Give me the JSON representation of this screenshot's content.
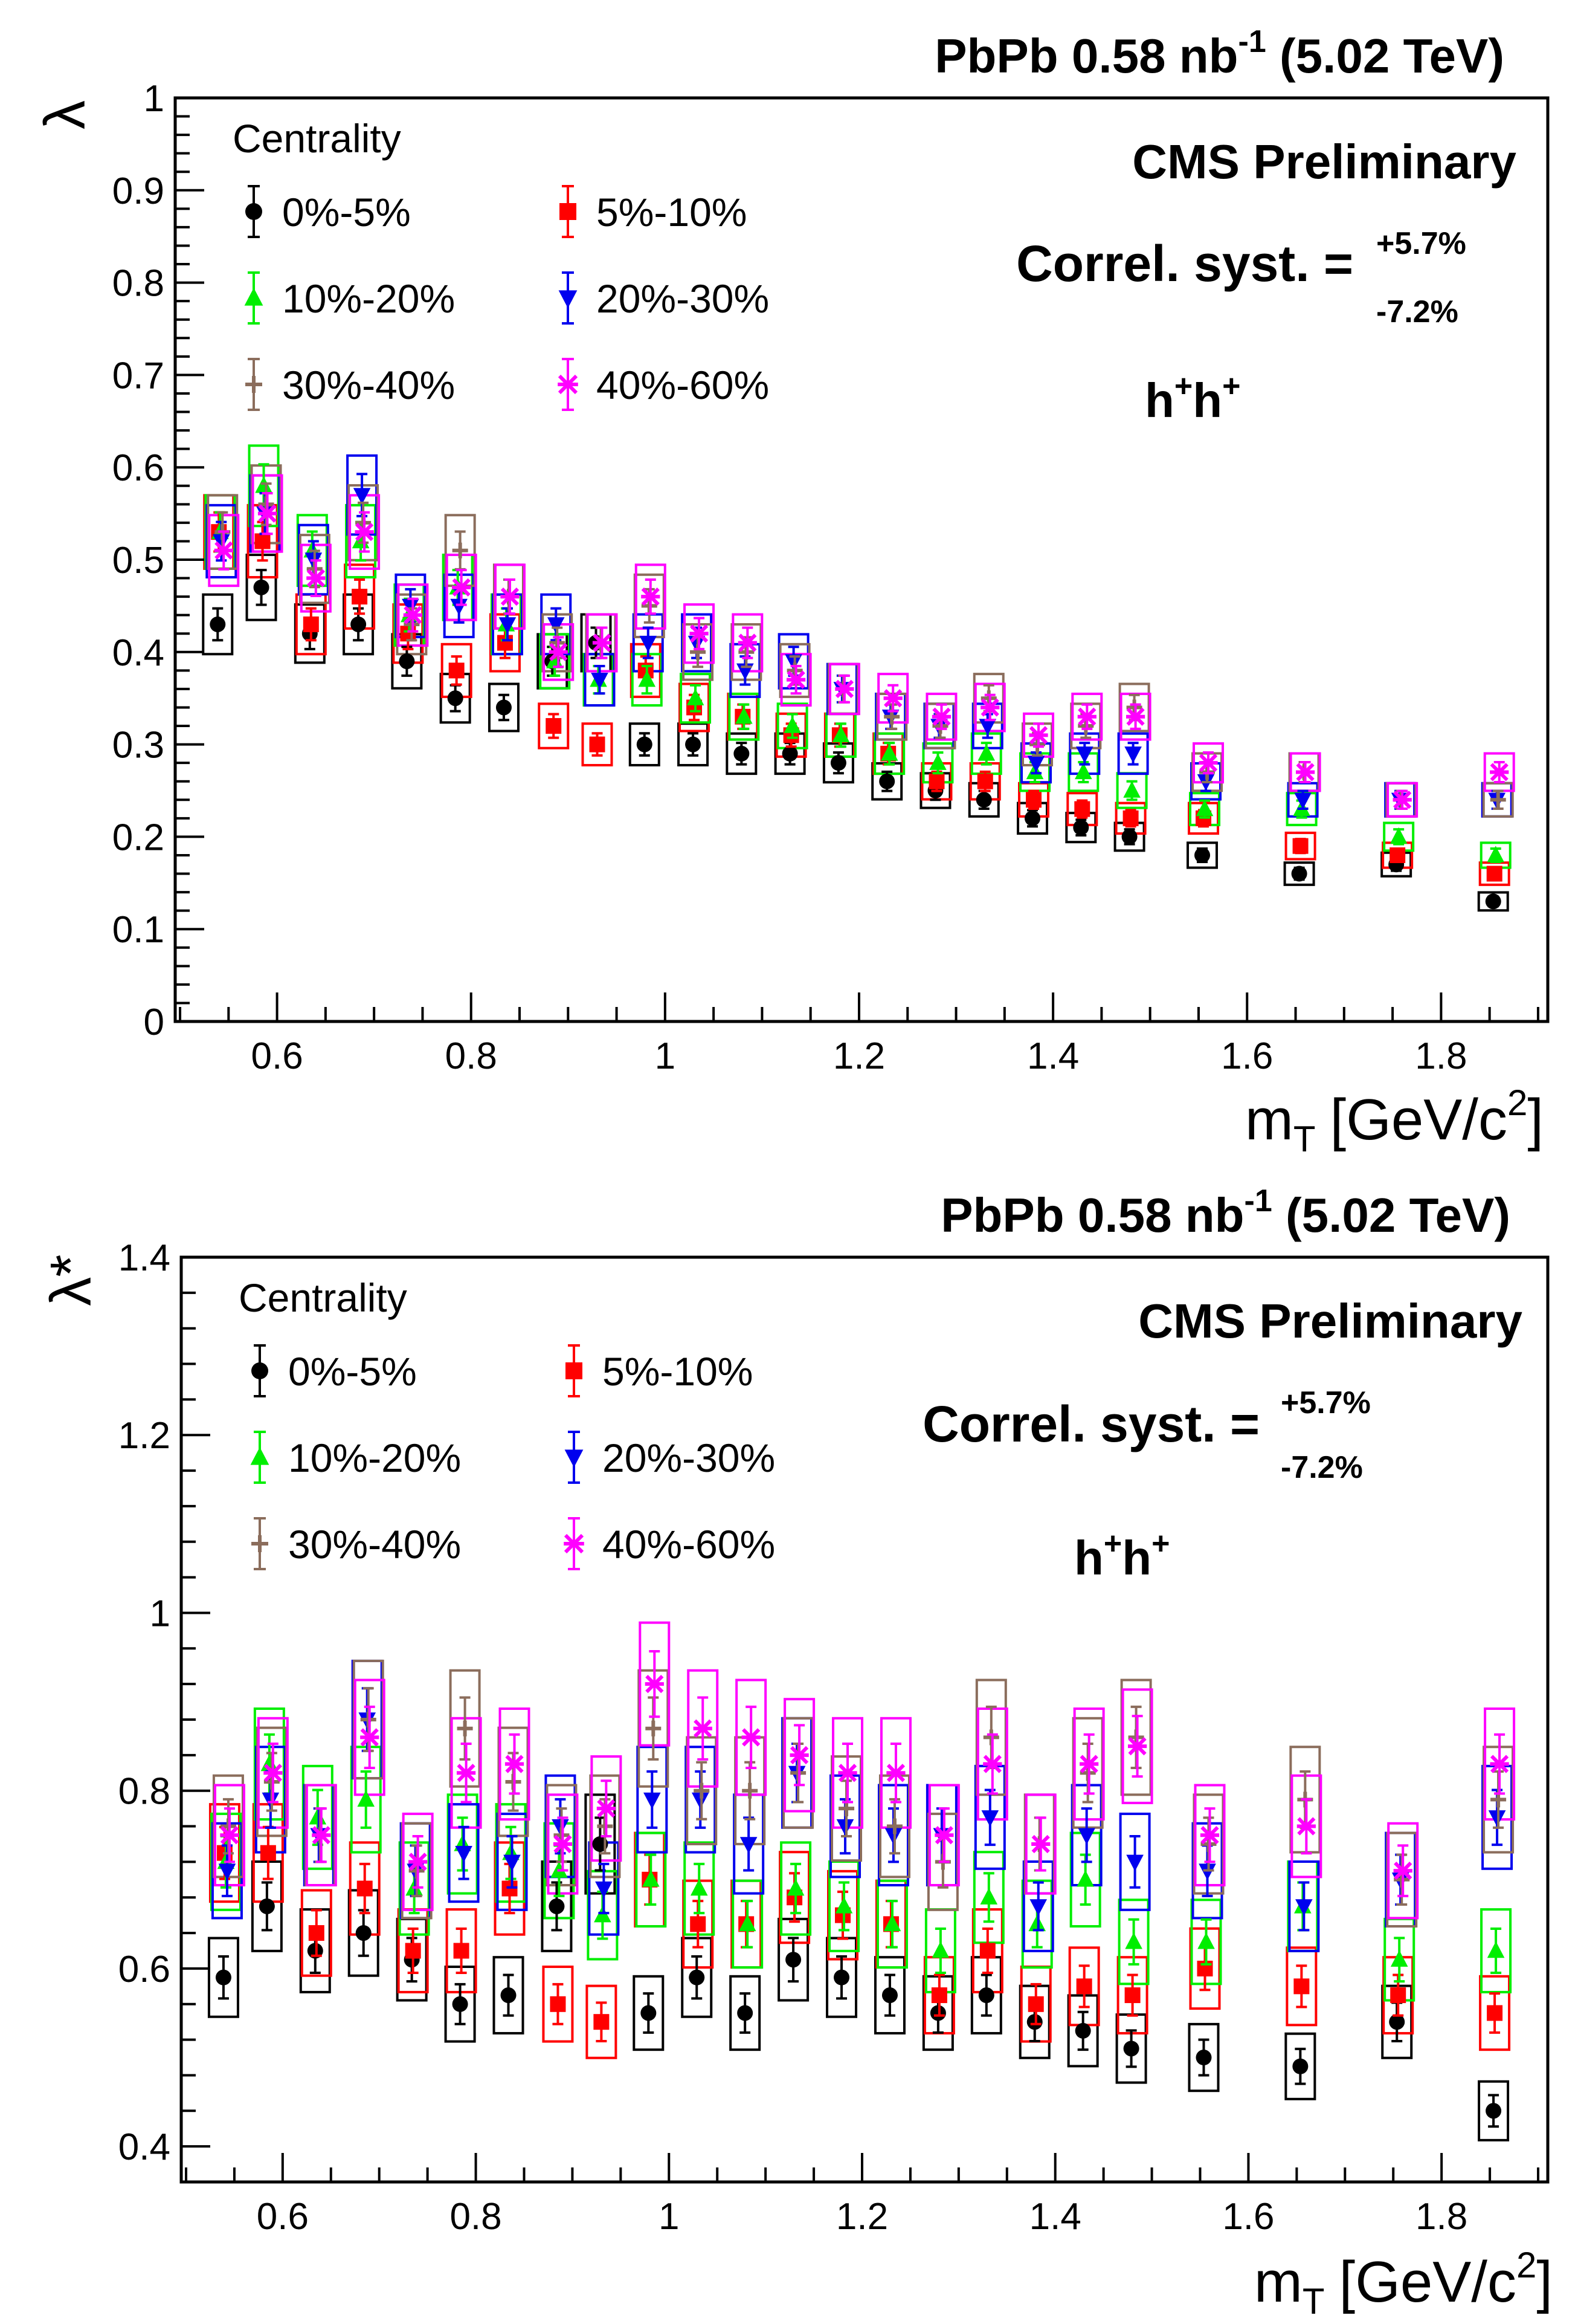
{
  "chart_data": [
    {
      "type": "scatter",
      "title": "PbPb 0.58 nb⁻¹ (5.02 TeV)",
      "title_parts": {
        "pre": "PbPb 0.58 nb",
        "sup": "-1",
        "post": " (5.02 TeV)"
      },
      "annotation": "CMS Preliminary",
      "syst_label": "Correl. syst. =",
      "syst_up": "+5.7%",
      "syst_down": "-7.2%",
      "pair_label": {
        "base": "h",
        "sup": "+"
      },
      "ylabel": "λ",
      "xlabel": "m_T [GeV/c²]",
      "xlabel_parts": {
        "m": "m",
        "sub": "T",
        "unit_pre": "[GeV/c",
        "unit_sup": "2",
        "unit_post": "]"
      },
      "legend_title": "Centrality",
      "xlim": [
        0.495,
        1.91
      ],
      "ylim": [
        0,
        1
      ],
      "xticks": [
        0.6,
        0.8,
        1,
        1.2,
        1.4,
        1.6,
        1.8
      ],
      "yticks": [
        0,
        0.1,
        0.2,
        0.3,
        0.4,
        0.5,
        0.6,
        0.7,
        0.8,
        0.9,
        1
      ],
      "x": [
        0.545,
        0.59,
        0.64,
        0.69,
        0.74,
        0.79,
        0.84,
        0.89,
        0.935,
        0.985,
        1.035,
        1.085,
        1.135,
        1.185,
        1.235,
        1.285,
        1.335,
        1.385,
        1.435,
        1.485,
        1.56,
        1.66,
        1.76,
        1.86
      ],
      "series": [
        {
          "name": "0%-5%",
          "color": "#000000",
          "marker": "circle",
          "values": [
            0.43,
            0.47,
            0.42,
            0.43,
            0.39,
            0.35,
            0.34,
            0.39,
            0.41,
            0.3,
            0.3,
            0.29,
            0.29,
            0.28,
            0.26,
            0.25,
            0.24,
            0.22,
            0.21,
            0.2,
            0.18,
            0.16,
            0.17,
            0.13
          ]
        },
        {
          "name": "5%-10%",
          "color": "#ff0000",
          "marker": "square",
          "values": [
            0.53,
            0.52,
            0.43,
            0.46,
            0.42,
            0.38,
            0.41,
            0.32,
            0.3,
            0.38,
            0.34,
            0.33,
            0.31,
            0.31,
            0.29,
            0.26,
            0.26,
            0.24,
            0.23,
            0.22,
            0.22,
            0.19,
            0.18,
            0.16
          ]
        },
        {
          "name": "10%-20%",
          "color": "#00ee00",
          "marker": "triangle-up",
          "values": [
            0.53,
            0.58,
            0.51,
            0.52,
            0.44,
            0.47,
            0.43,
            0.39,
            0.37,
            0.37,
            0.35,
            0.33,
            0.32,
            0.31,
            0.29,
            0.28,
            0.29,
            0.27,
            0.27,
            0.25,
            0.23,
            0.23,
            0.2,
            0.18
          ]
        },
        {
          "name": "20%-30%",
          "color": "#0000ee",
          "marker": "triangle-down",
          "values": [
            0.52,
            0.55,
            0.5,
            0.57,
            0.45,
            0.45,
            0.43,
            0.43,
            0.37,
            0.41,
            0.41,
            0.38,
            0.39,
            0.36,
            0.33,
            0.32,
            0.32,
            0.28,
            0.29,
            0.29,
            0.26,
            0.24,
            0.24,
            0.24
          ]
        },
        {
          "name": "30%-40%",
          "color": "#8b6d5c",
          "marker": "cross",
          "values": [
            0.53,
            0.56,
            0.49,
            0.54,
            0.43,
            0.51,
            0.46,
            0.41,
            0.41,
            0.45,
            0.4,
            0.4,
            0.38,
            0.36,
            0.33,
            0.32,
            0.35,
            0.3,
            0.32,
            0.34,
            0.27,
            0.27,
            0.24,
            0.24
          ]
        },
        {
          "name": "40%-60%",
          "color": "#ff00ff",
          "marker": "star",
          "values": [
            0.51,
            0.55,
            0.48,
            0.53,
            0.44,
            0.47,
            0.46,
            0.4,
            0.41,
            0.46,
            0.42,
            0.41,
            0.37,
            0.36,
            0.35,
            0.33,
            0.34,
            0.31,
            0.33,
            0.33,
            0.28,
            0.27,
            0.24,
            0.27
          ]
        }
      ]
    },
    {
      "type": "scatter",
      "title": "PbPb 0.58 nb⁻¹ (5.02 TeV)",
      "title_parts": {
        "pre": "PbPb 0.58 nb",
        "sup": "-1",
        "post": " (5.02 TeV)"
      },
      "annotation": "CMS Preliminary",
      "syst_label": "Correl. syst. =",
      "syst_up": "+5.7%",
      "syst_down": "-7.2%",
      "pair_label": {
        "base": "h",
        "sup": "+"
      },
      "ylabel": "λ*",
      "xlabel": "m_T [GeV/c²]",
      "xlabel_parts": {
        "m": "m",
        "sub": "T",
        "unit_pre": "[GeV/c",
        "unit_sup": "2",
        "unit_post": "]"
      },
      "legend_title": "Centrality",
      "xlim": [
        0.495,
        1.91
      ],
      "ylim": [
        0.36,
        1.4
      ],
      "xticks": [
        0.6,
        0.8,
        1,
        1.2,
        1.4,
        1.6,
        1.8
      ],
      "yticks": [
        0.4,
        0.6,
        0.8,
        1,
        1.2,
        1.4
      ],
      "x": [
        0.545,
        0.59,
        0.64,
        0.69,
        0.74,
        0.79,
        0.84,
        0.89,
        0.935,
        0.985,
        1.035,
        1.085,
        1.135,
        1.185,
        1.235,
        1.285,
        1.335,
        1.385,
        1.435,
        1.485,
        1.56,
        1.66,
        1.76,
        1.86
      ],
      "series": [
        {
          "name": "0%-5%",
          "color": "#000000",
          "marker": "circle",
          "values": [
            0.59,
            0.67,
            0.62,
            0.64,
            0.61,
            0.56,
            0.57,
            0.67,
            0.74,
            0.55,
            0.59,
            0.55,
            0.61,
            0.59,
            0.57,
            0.55,
            0.57,
            0.54,
            0.53,
            0.51,
            0.5,
            0.49,
            0.54,
            0.44
          ]
        },
        {
          "name": "5%-10%",
          "color": "#ff0000",
          "marker": "square",
          "values": [
            0.73,
            0.73,
            0.64,
            0.69,
            0.62,
            0.62,
            0.69,
            0.56,
            0.54,
            0.7,
            0.65,
            0.65,
            0.68,
            0.66,
            0.65,
            0.57,
            0.62,
            0.56,
            0.58,
            0.57,
            0.6,
            0.58,
            0.57,
            0.55
          ]
        },
        {
          "name": "10%-20%",
          "color": "#00ee00",
          "marker": "triangle-up",
          "values": [
            0.72,
            0.83,
            0.77,
            0.79,
            0.69,
            0.74,
            0.73,
            0.71,
            0.66,
            0.7,
            0.69,
            0.65,
            0.69,
            0.67,
            0.65,
            0.62,
            0.68,
            0.65,
            0.7,
            0.63,
            0.63,
            0.67,
            0.61,
            0.62
          ]
        },
        {
          "name": "20%-30%",
          "color": "#0000ee",
          "marker": "triangle-down",
          "values": [
            0.71,
            0.79,
            0.75,
            0.88,
            0.71,
            0.73,
            0.72,
            0.76,
            0.69,
            0.79,
            0.79,
            0.74,
            0.82,
            0.76,
            0.75,
            0.75,
            0.77,
            0.67,
            0.75,
            0.72,
            0.71,
            0.67,
            0.7,
            0.77
          ]
        },
        {
          "name": "30%-40%",
          "color": "#8b6d5c",
          "marker": "cross",
          "values": [
            0.76,
            0.81,
            0.75,
            0.88,
            0.71,
            0.87,
            0.81,
            0.75,
            0.76,
            0.87,
            0.8,
            0.8,
            0.82,
            0.78,
            0.76,
            0.72,
            0.86,
            0.74,
            0.82,
            0.86,
            0.74,
            0.79,
            0.7,
            0.79
          ]
        },
        {
          "name": "40%-60%",
          "color": "#ff00ff",
          "marker": "star",
          "values": [
            0.75,
            0.82,
            0.75,
            0.86,
            0.72,
            0.82,
            0.83,
            0.74,
            0.78,
            0.92,
            0.87,
            0.86,
            0.84,
            0.82,
            0.82,
            0.75,
            0.83,
            0.74,
            0.83,
            0.85,
            0.75,
            0.76,
            0.71,
            0.83
          ]
        }
      ]
    }
  ]
}
